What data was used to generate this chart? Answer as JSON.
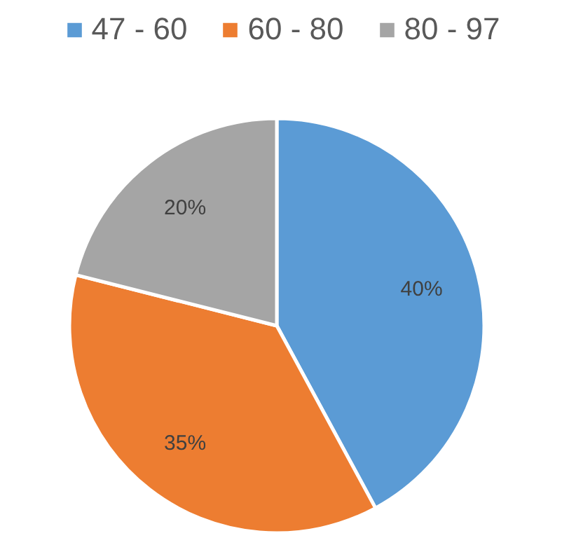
{
  "chart_data": {
    "type": "pie",
    "categories": [
      "47 - 60",
      "60 - 80",
      "80 - 97"
    ],
    "values": [
      40,
      35,
      20
    ],
    "colors": [
      "#5b9bd5",
      "#ed7d31",
      "#a5a5a5"
    ],
    "value_labels": [
      "40%",
      "35%",
      "20%"
    ],
    "legend": "top"
  }
}
